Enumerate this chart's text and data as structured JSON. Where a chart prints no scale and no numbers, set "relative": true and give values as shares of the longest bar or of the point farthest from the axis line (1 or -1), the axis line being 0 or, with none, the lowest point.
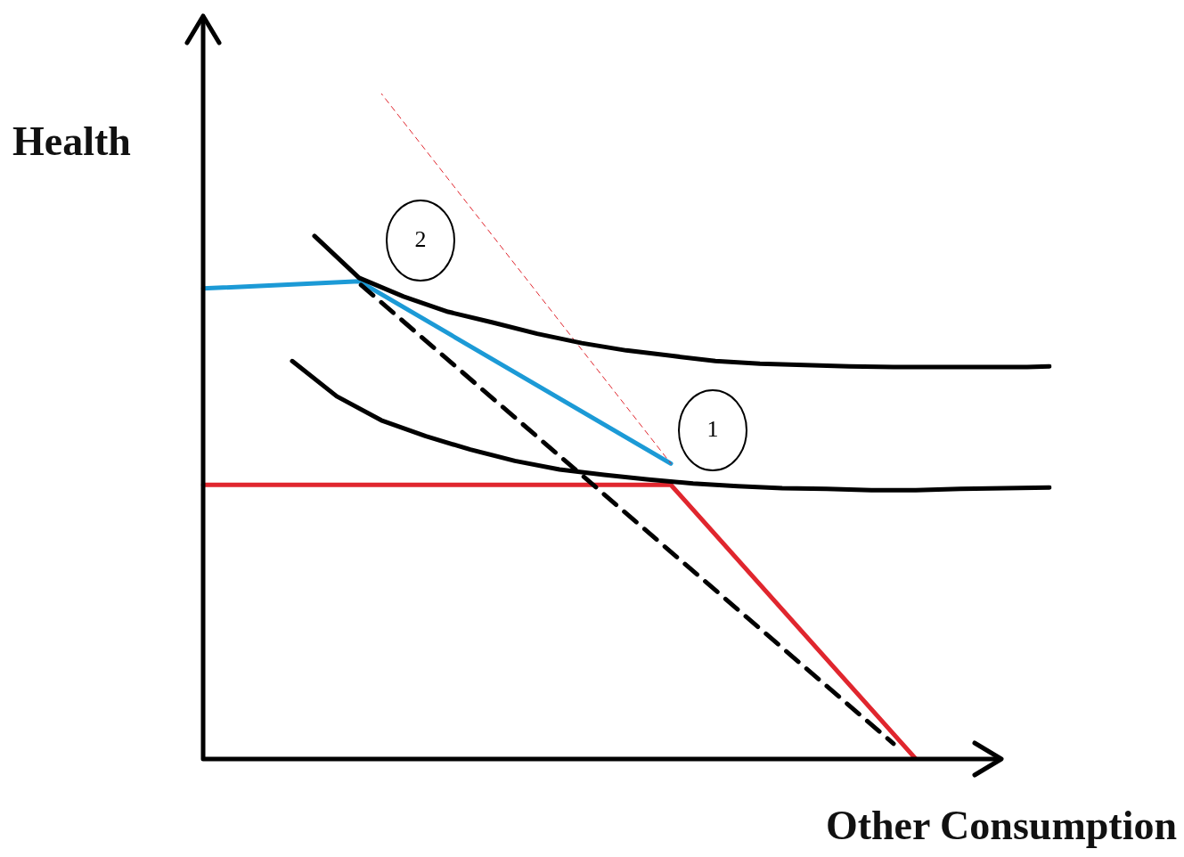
{
  "chart_data": {
    "type": "line",
    "relative": true,
    "xlabel": "Other Consumption",
    "ylabel": "Health",
    "marker": "none",
    "categories": [
      null,
      null,
      null,
      null,
      null,
      null,
      null,
      null,
      null,
      null,
      null,
      null,
      null,
      null,
      null,
      null,
      null,
      null,
      null,
      null,
      null,
      null,
      null,
      null,
      null,
      null,
      null,
      null,
      null,
      null,
      null,
      null,
      null,
      null,
      null,
      null,
      null,
      null,
      null
    ],
    "series": [
      {
        "color": "#000000",
        "line_style": "solid",
        "values": [
          null,
          null,
          null,
          null,
          null,
          0.786,
          null,
          0.723,
          null,
          0.695,
          null,
          0.672,
          null,
          0.656,
          null,
          0.639,
          null,
          0.625,
          null,
          0.614,
          null,
          0.606,
          null,
          0.598,
          null,
          0.594,
          null,
          0.592,
          null,
          0.59,
          null,
          0.589,
          null,
          0.589,
          null,
          0.589,
          null,
          0.589,
          0.59
        ]
      },
      {
        "color": "#000000",
        "line_style": "solid",
        "values": [
          null,
          null,
          null,
          null,
          0.598,
          null,
          0.545,
          null,
          0.509,
          null,
          0.485,
          null,
          0.465,
          null,
          0.448,
          null,
          0.435,
          null,
          0.427,
          null,
          0.42,
          null,
          0.414,
          null,
          0.41,
          null,
          0.407,
          null,
          0.406,
          null,
          0.404,
          null,
          0.404,
          null,
          0.406,
          null,
          0.407,
          null,
          0.408
        ]
      },
      {
        "color": "#000000",
        "line_style": "dashed",
        "values": [
          null,
          null,
          null,
          null,
          null,
          null,
          null,
          0.715,
          null,
          null,
          null,
          null,
          null,
          null,
          null,
          null,
          null,
          null,
          null,
          null,
          null,
          null,
          null,
          null,
          null,
          null,
          null,
          null,
          null,
          null,
          null,
          0.023,
          null,
          null,
          null,
          null,
          null,
          null,
          null
        ]
      },
      {
        "color": "#e0262e",
        "line_style": "dotted",
        "values": [
          null,
          null,
          null,
          null,
          null,
          null,
          null,
          null,
          1,
          null,
          null,
          null,
          null,
          null,
          null,
          null,
          null,
          null,
          null,
          null,
          null,
          0.444,
          null,
          null,
          null,
          null,
          null,
          null,
          null,
          null,
          null,
          null,
          null,
          null,
          null,
          null,
          null,
          null,
          null
        ]
      },
      {
        "color": "#1c9ad6",
        "line_style": "solid",
        "values": [
          0.707,
          null,
          null,
          null,
          null,
          null,
          null,
          0.718,
          null,
          null,
          null,
          null,
          null,
          null,
          null,
          null,
          null,
          null,
          null,
          null,
          null,
          0.444,
          null,
          null,
          null,
          null,
          null,
          null,
          null,
          null,
          null,
          null,
          null,
          null,
          null,
          null,
          null,
          null,
          null
        ]
      },
      {
        "color": "#e0262e",
        "line_style": "solid",
        "values": [
          0.412,
          null,
          null,
          null,
          null,
          null,
          null,
          null,
          null,
          null,
          null,
          null,
          null,
          null,
          null,
          null,
          null,
          null,
          null,
          null,
          null,
          0.412,
          null,
          null,
          null,
          null,
          null,
          null,
          null,
          null,
          null,
          null,
          0,
          null,
          null,
          null,
          null,
          null,
          null
        ]
      }
    ],
    "annotations": [
      "2",
      "1"
    ]
  }
}
